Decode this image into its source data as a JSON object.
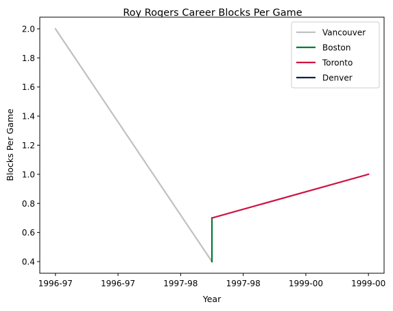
{
  "chart_data": {
    "type": "line",
    "title": "Roy Rogers  Career Blocks Per Game",
    "xlabel": "Year",
    "ylabel": "Blocks Per Game",
    "x_tick_labels": [
      "1996-97",
      "1996-97",
      "1997-98",
      "1997-98",
      "1999-00",
      "1999-00"
    ],
    "x_tick_positions": [
      0,
      0.5,
      1,
      1.5,
      2,
      2.5
    ],
    "xlim": [
      -0.125,
      2.625
    ],
    "ylim": [
      0.32,
      2.08
    ],
    "y_ticks": [
      0.4,
      0.6,
      0.8,
      1.0,
      1.2,
      1.4,
      1.6,
      1.8,
      2.0
    ],
    "grid": false,
    "legend_position": "top-right",
    "series": [
      {
        "name": "Vancouver",
        "color": "#c0c0c0",
        "x": [
          0,
          1.25
        ],
        "values": [
          2.0,
          0.4
        ]
      },
      {
        "name": "Boston",
        "color": "#007a33",
        "x": [
          1.25,
          1.25
        ],
        "values": [
          0.4,
          0.7
        ]
      },
      {
        "name": "Toronto",
        "color": "#ce1141",
        "x": [
          1.25,
          2.5
        ],
        "values": [
          0.7,
          1.0
        ]
      },
      {
        "name": "Denver",
        "color": "#0e2240",
        "x": [],
        "values": []
      }
    ]
  }
}
